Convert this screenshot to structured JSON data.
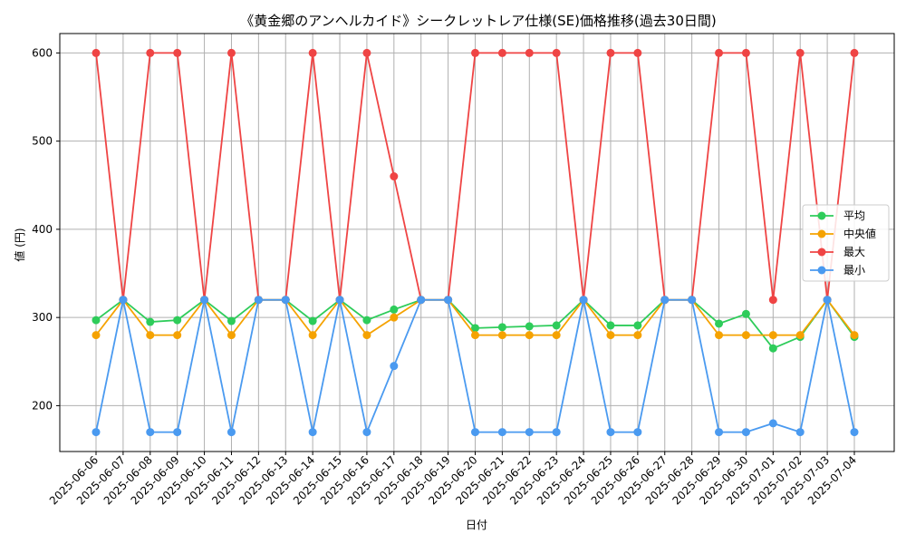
{
  "chart_data": {
    "type": "line",
    "title": "《黄金郷のアンヘルカイド》シークレットレア仕様(SE)価格推移(過去30日間)",
    "xlabel": "日付",
    "ylabel": "値 (円)",
    "ylim": [
      148,
      622
    ],
    "yticks": [
      200,
      300,
      400,
      500,
      600
    ],
    "grid": true,
    "legend_position": "right",
    "categories": [
      "2025-06-06",
      "2025-06-07",
      "2025-06-08",
      "2025-06-09",
      "2025-06-10",
      "2025-06-11",
      "2025-06-12",
      "2025-06-13",
      "2025-06-14",
      "2025-06-15",
      "2025-06-16",
      "2025-06-17",
      "2025-06-18",
      "2025-06-19",
      "2025-06-20",
      "2025-06-21",
      "2025-06-22",
      "2025-06-23",
      "2025-06-24",
      "2025-06-25",
      "2025-06-26",
      "2025-06-27",
      "2025-06-28",
      "2025-06-29",
      "2025-06-30",
      "2025-07-01",
      "2025-07-02",
      "2025-07-03",
      "2025-07-04"
    ],
    "series": [
      {
        "name": "平均",
        "color": "#2ecc5a",
        "values": [
          297,
          320,
          295,
          297,
          320,
          296,
          320,
          320,
          296,
          320,
          297,
          309,
          320,
          320,
          288,
          289,
          290,
          291,
          320,
          291,
          291,
          320,
          320,
          293,
          304,
          265,
          278,
          320,
          278
        ]
      },
      {
        "name": "中央値",
        "color": "#f5a200",
        "values": [
          280,
          320,
          280,
          280,
          320,
          280,
          320,
          320,
          280,
          320,
          280,
          300,
          320,
          320,
          280,
          280,
          280,
          280,
          320,
          280,
          280,
          320,
          320,
          280,
          280,
          280,
          280,
          320,
          280
        ]
      },
      {
        "name": "最大",
        "color": "#ef4444",
        "values": [
          600,
          320,
          600,
          600,
          320,
          600,
          320,
          320,
          600,
          320,
          600,
          460,
          320,
          320,
          600,
          600,
          600,
          600,
          320,
          600,
          600,
          320,
          320,
          600,
          600,
          320,
          600,
          320,
          600
        ]
      },
      {
        "name": "最小",
        "color": "#4a9af0",
        "values": [
          170,
          320,
          170,
          170,
          320,
          170,
          320,
          320,
          170,
          320,
          170,
          245,
          320,
          320,
          170,
          170,
          170,
          170,
          320,
          170,
          170,
          320,
          320,
          170,
          170,
          180,
          170,
          320,
          170
        ]
      }
    ]
  }
}
